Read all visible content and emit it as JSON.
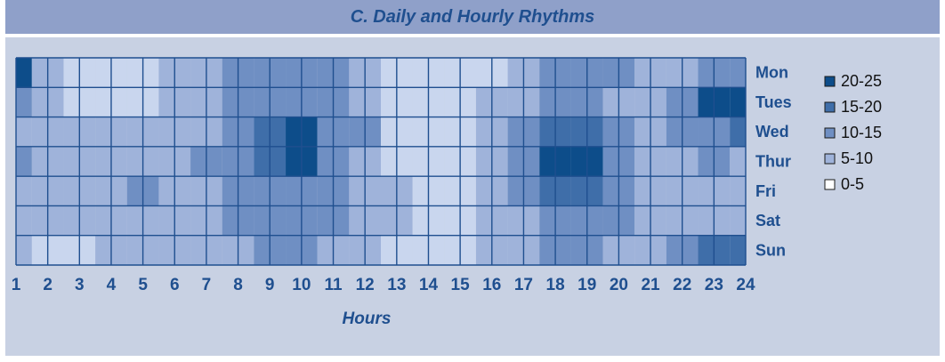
{
  "chart_data": {
    "type": "heatmap",
    "title": "C. Daily and Hourly Rhythms",
    "xlabel": "Hours",
    "ylabel": "",
    "x": [
      1,
      2,
      3,
      4,
      5,
      6,
      7,
      8,
      9,
      10,
      11,
      12,
      13,
      14,
      15,
      16,
      17,
      18,
      19,
      20,
      21,
      22,
      23,
      24
    ],
    "y": [
      "Mon",
      "Tues",
      "Wed",
      "Thur",
      "Fri",
      "Sat",
      "Sun"
    ],
    "legend": {
      "placement": "right",
      "items": [
        {
          "label": "20-25",
          "color": "#0d4d8a"
        },
        {
          "label": "15-20",
          "color": "#3f6ea9"
        },
        {
          "label": "10-15",
          "color": "#6f8fc3"
        },
        {
          "label": "5-10",
          "color": "#9fb3da"
        },
        {
          "label": "0-5",
          "color": "#ffffff"
        }
      ]
    },
    "values": [
      [
        20,
        8,
        4,
        3,
        4,
        7,
        8,
        11,
        13,
        13,
        11,
        7,
        1,
        3,
        3,
        3,
        7,
        12,
        12,
        10,
        8,
        9,
        11,
        12
      ],
      [
        10,
        7,
        2,
        2,
        3,
        8,
        8,
        11,
        13,
        14,
        12,
        8,
        1,
        1,
        3,
        6,
        9,
        12,
        12,
        9,
        8,
        14,
        22,
        21
      ],
      [
        6,
        6,
        6,
        6,
        6,
        7,
        9,
        12,
        16,
        21,
        14,
        10,
        3,
        2,
        2,
        6,
        12,
        15,
        16,
        11,
        7,
        10,
        14,
        15
      ],
      [
        10,
        7,
        6,
        7,
        8,
        9,
        12,
        14,
        15,
        20,
        14,
        9,
        4,
        3,
        4,
        7,
        14,
        21,
        22,
        12,
        7,
        9,
        10,
        9
      ],
      [
        6,
        8,
        8,
        6,
        10,
        8,
        8,
        11,
        13,
        14,
        12,
        8,
        7,
        4,
        4,
        8,
        12,
        17,
        17,
        12,
        9,
        8,
        9,
        7
      ],
      [
        8,
        7,
        6,
        6,
        7,
        8,
        8,
        12,
        12,
        14,
        10,
        8,
        6,
        4,
        4,
        6,
        9,
        13,
        13,
        10,
        8,
        9,
        8,
        8
      ],
      [
        7,
        4,
        4,
        5,
        5,
        5,
        6,
        9,
        10,
        10,
        9,
        8,
        4,
        4,
        4,
        5,
        7,
        10,
        10,
        9,
        9,
        12,
        15,
        18
      ]
    ]
  }
}
